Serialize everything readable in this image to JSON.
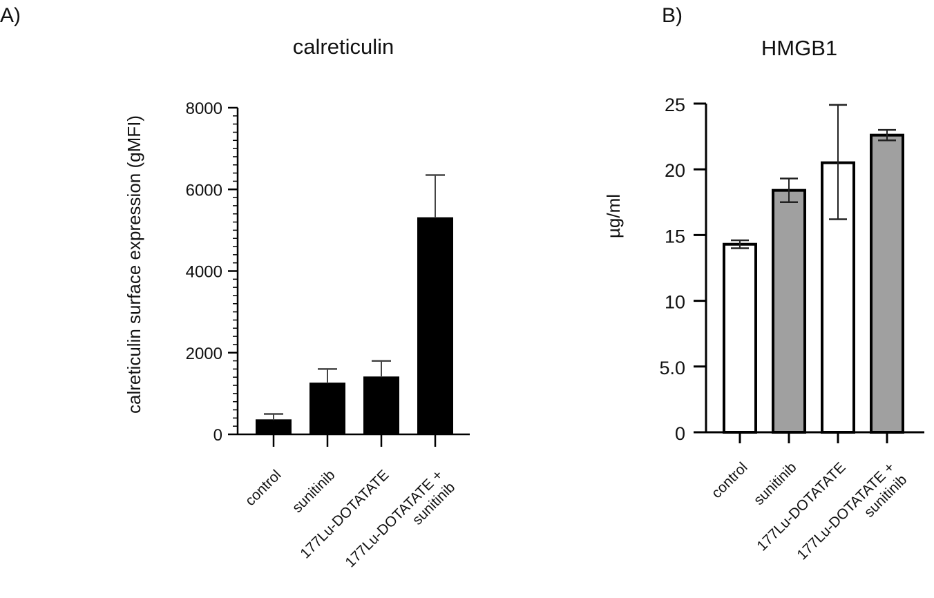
{
  "chart_data": [
    {
      "type": "bar",
      "panel_label": "A)",
      "title": "calreticulin",
      "ylabel": "calreticulin surface expression (gMFI)",
      "xlabel": "",
      "ylim": [
        0,
        8000
      ],
      "yticks": [
        0,
        2000,
        4000,
        6000,
        8000
      ],
      "ytick_labels": [
        "0",
        "2000",
        "4000",
        "6000",
        "8000"
      ],
      "categories": [
        "control",
        "sunitinib",
        "177Lu-DOTATATE",
        "177Lu-DOTATATE + sunitinib"
      ],
      "values": [
        350,
        1250,
        1400,
        5300
      ],
      "error_upper": [
        150,
        350,
        400,
        1050
      ],
      "bar_colors": [
        "#000000",
        "#000000",
        "#000000",
        "#000000"
      ],
      "grid": false,
      "legend": "none"
    },
    {
      "type": "bar",
      "panel_label": "B)",
      "title": "HMGB1",
      "ylabel": "µg/ml",
      "xlabel": "",
      "ylim": [
        0,
        25
      ],
      "yticks": [
        0,
        5,
        10,
        15,
        20,
        25
      ],
      "ytick_labels": [
        "0",
        "5.0",
        "10",
        "15",
        "20",
        "25"
      ],
      "categories": [
        "control",
        "sunitinib",
        "177Lu-DOTATATE",
        "177Lu-DOTATATE + sunitinib"
      ],
      "values": [
        14.3,
        18.4,
        20.5,
        22.6
      ],
      "error_upper": [
        0.3,
        0.9,
        4.4,
        0.4
      ],
      "error_lower": [
        0.3,
        0.9,
        4.3,
        0.4
      ],
      "bar_colors": [
        "#ffffff",
        "#a0a0a0",
        "#ffffff",
        "#a0a0a0"
      ],
      "grid": false,
      "legend": "none"
    }
  ]
}
